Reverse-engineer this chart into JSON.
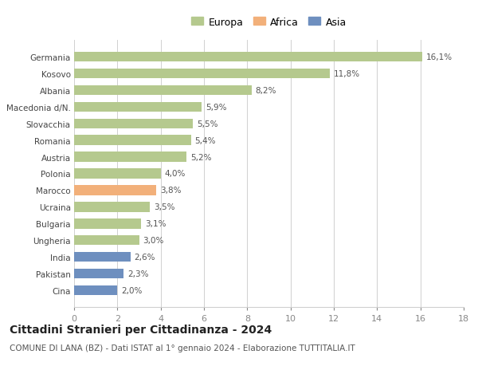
{
  "categories": [
    "Germania",
    "Kosovo",
    "Albania",
    "Macedonia d/N.",
    "Slovacchia",
    "Romania",
    "Austria",
    "Polonia",
    "Marocco",
    "Ucraina",
    "Bulgaria",
    "Ungheria",
    "India",
    "Pakistan",
    "Cina"
  ],
  "values": [
    16.1,
    11.8,
    8.2,
    5.9,
    5.5,
    5.4,
    5.2,
    4.0,
    3.8,
    3.5,
    3.1,
    3.0,
    2.6,
    2.3,
    2.0
  ],
  "labels": [
    "16,1%",
    "11,8%",
    "8,2%",
    "5,9%",
    "5,5%",
    "5,4%",
    "5,2%",
    "4,0%",
    "3,8%",
    "3,5%",
    "3,1%",
    "3,0%",
    "2,6%",
    "2,3%",
    "2,0%"
  ],
  "continents": [
    "Europa",
    "Europa",
    "Europa",
    "Europa",
    "Europa",
    "Europa",
    "Europa",
    "Europa",
    "Africa",
    "Europa",
    "Europa",
    "Europa",
    "Asia",
    "Asia",
    "Asia"
  ],
  "colors": {
    "Europa": "#b5c98e",
    "Africa": "#f2b07a",
    "Asia": "#6e8fbf"
  },
  "xlim": [
    0,
    18
  ],
  "xticks": [
    0,
    2,
    4,
    6,
    8,
    10,
    12,
    14,
    16,
    18
  ],
  "title": "Cittadini Stranieri per Cittadinanza - 2024",
  "subtitle": "COMUNE DI LANA (BZ) - Dati ISTAT al 1° gennaio 2024 - Elaborazione TUTTITALIA.IT",
  "background_color": "#ffffff",
  "grid_color": "#d0d0d0",
  "bar_height": 0.6,
  "label_fontsize": 7.5,
  "ytick_fontsize": 7.5,
  "xtick_fontsize": 8,
  "title_fontsize": 10,
  "subtitle_fontsize": 7.5
}
